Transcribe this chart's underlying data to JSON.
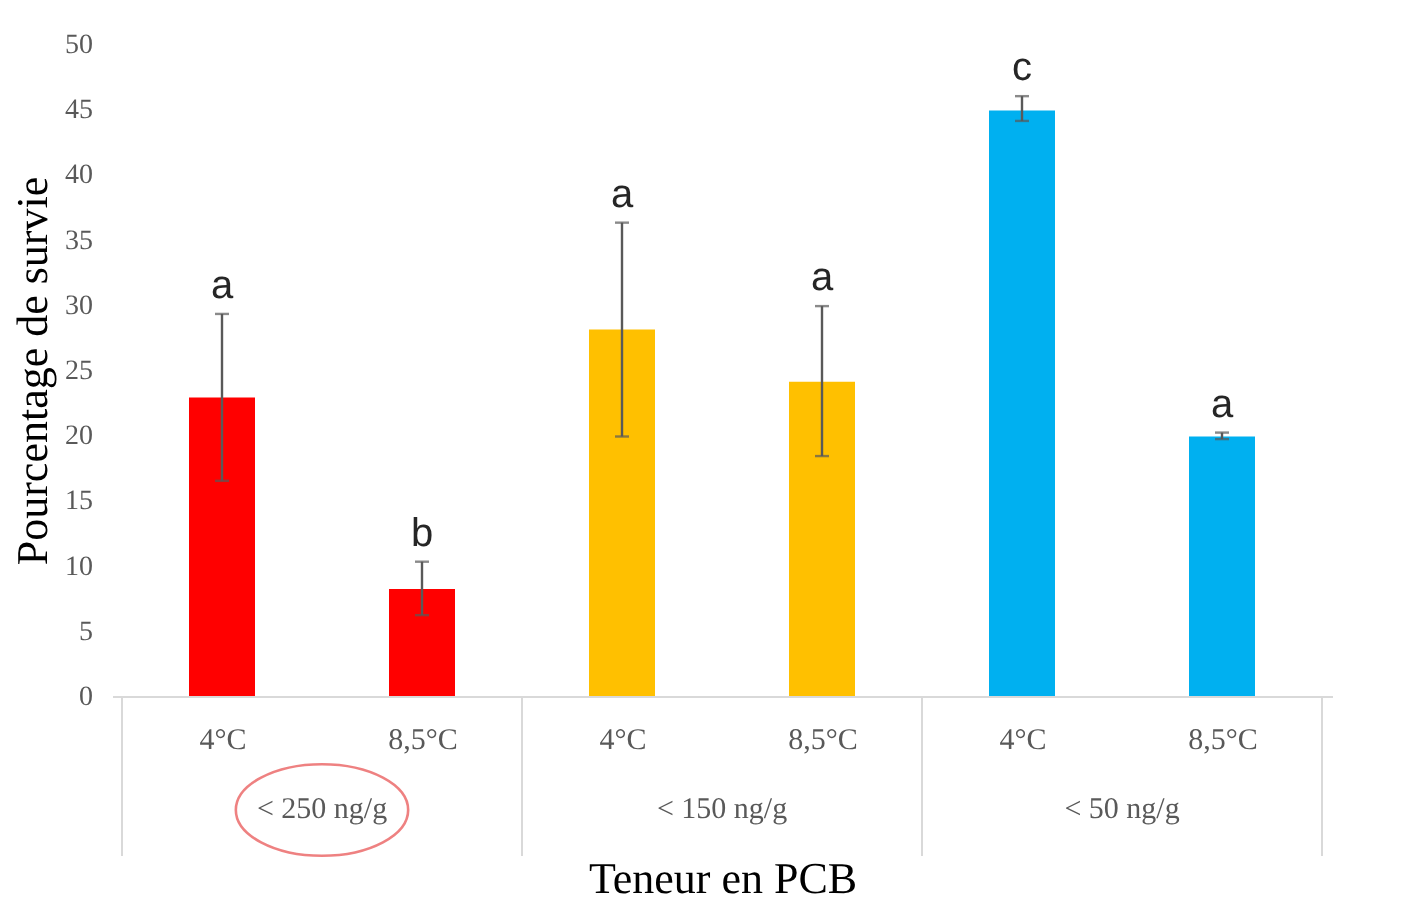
{
  "chart_data": {
    "type": "bar",
    "xlabel": "Teneur en PCB",
    "ylabel": "Pourcentage de survie",
    "categories": [
      "4°C",
      "8,5°C",
      "4°C",
      "8,5°C",
      "4°C",
      "8,5°C"
    ],
    "values": [
      22.9,
      8.2,
      28.1,
      24.1,
      44.9,
      19.9
    ],
    "colors": [
      "#ff0000",
      "#ff0000",
      "#ffc000",
      "#ffc000",
      "#00b0f0",
      "#00b0f0"
    ],
    "errors": [
      [
        16.5,
        29.3
      ],
      [
        6.2,
        10.3
      ],
      [
        19.9,
        36.3
      ],
      [
        18.4,
        29.9
      ],
      [
        44.1,
        46.0
      ],
      [
        19.7,
        20.2
      ]
    ],
    "value_labels": [
      "a",
      "b",
      "a",
      "a",
      "c",
      "a"
    ],
    "annotations": [
      "< 250 ng/g",
      "< 150 ng/g",
      "< 50 ng/g"
    ],
    "ylim": [
      0,
      50
    ],
    "yticks": [
      0,
      5,
      10,
      15,
      20,
      25,
      30,
      35,
      40,
      45,
      50
    ],
    "grid": false
  }
}
